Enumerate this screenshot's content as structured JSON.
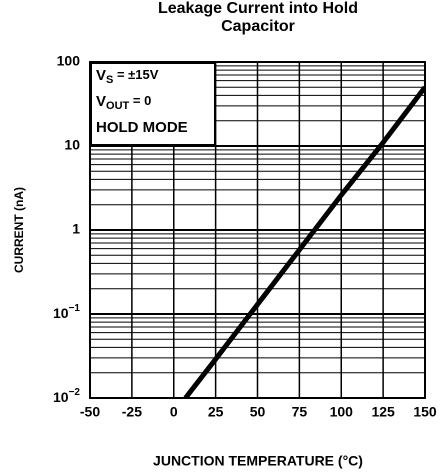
{
  "chart_data": {
    "type": "line",
    "title": "Leakage Current into Hold Capacitor",
    "xlabel": "JUNCTION TEMPERATURE (°C)",
    "ylabel": "CURRENT (nA)",
    "x": [
      7,
      25,
      50,
      75,
      100,
      125,
      150
    ],
    "series": [
      {
        "name": "HOLD MODE",
        "color": "#000000",
        "values": [
          0.01,
          0.029,
          0.13,
          0.58,
          2.6,
          11,
          50
        ]
      }
    ],
    "xlim": [
      -50,
      150
    ],
    "xticks": [
      -50,
      -25,
      0,
      25,
      50,
      75,
      100,
      125,
      150
    ],
    "ylim": [
      0.01,
      100
    ],
    "ylog": true,
    "yticks": [
      {
        "value": 0.01,
        "label": "10",
        "exponent": "−2"
      },
      {
        "value": 0.1,
        "label": "10",
        "exponent": "−1"
      },
      1,
      10,
      100
    ],
    "grid": true,
    "annotations": [
      {
        "main": "V",
        "sub": "S",
        "tail": " = ±15V"
      },
      {
        "main": "V",
        "sub": "OUT",
        "tail": " = 0"
      },
      {
        "main": "HOLD MODE"
      }
    ]
  }
}
